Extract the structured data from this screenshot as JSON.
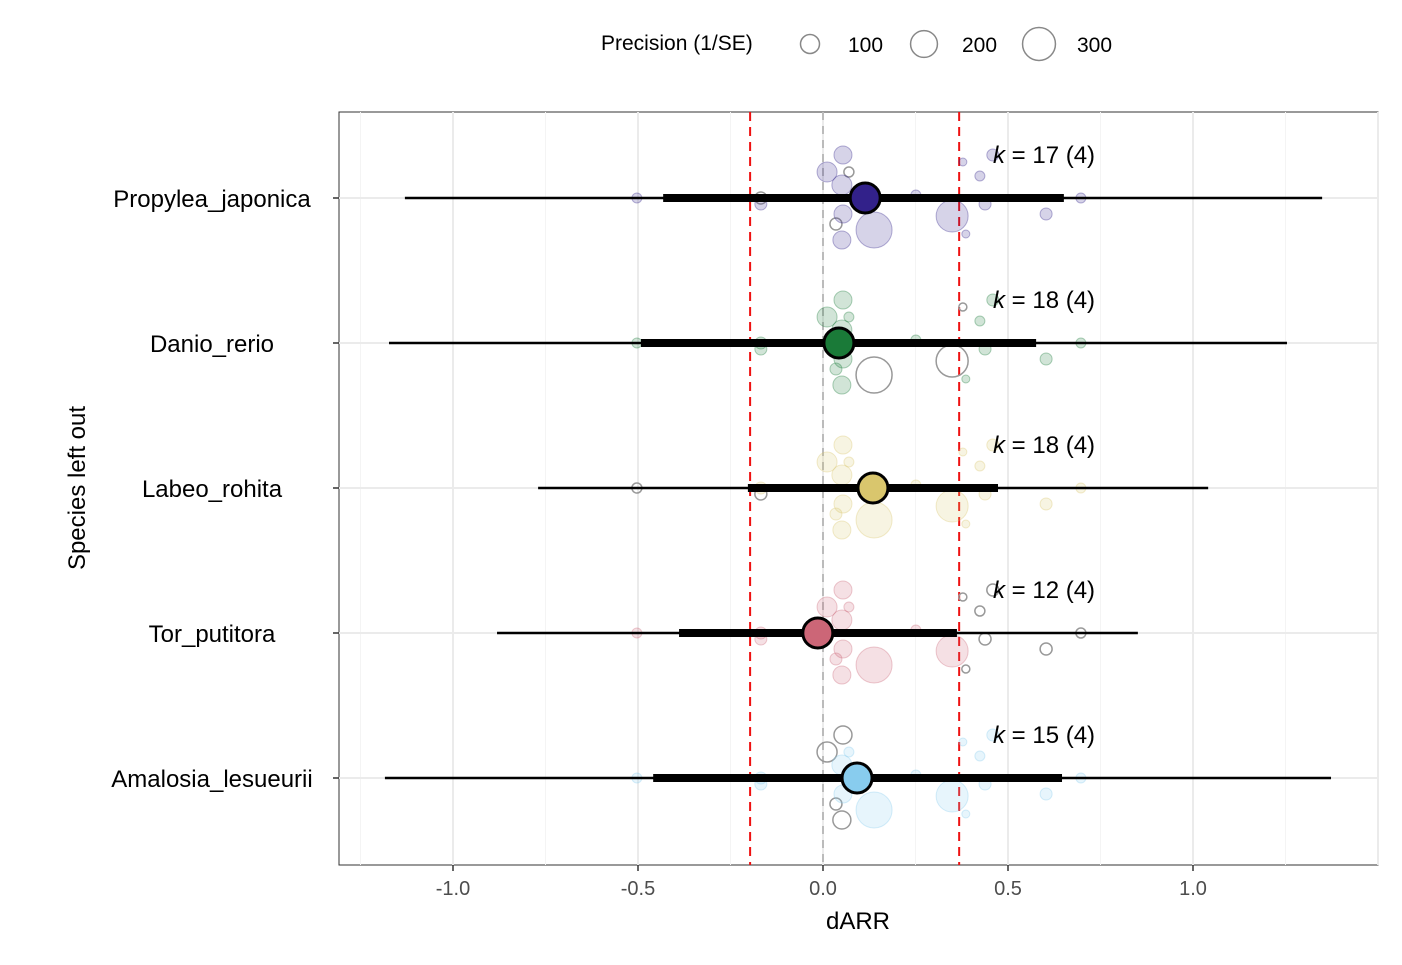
{
  "chart_data": {
    "type": "scatter",
    "subtype": "orchard plot (leave-one-species-out)",
    "xlabel": "dARR",
    "ylabel": "Species left out",
    "xlim": [
      -1.3,
      1.5
    ],
    "xticks": [
      -1.0,
      -0.5,
      0.0,
      0.5,
      1.0
    ],
    "xtick_labels": [
      "-1.0",
      "-0.5",
      "0.0",
      "0.5",
      "1.0"
    ],
    "grid": true,
    "reference_lines": {
      "zero": 0.0,
      "red_dashed": [
        -0.197,
        0.368
      ]
    },
    "legend": {
      "title": "Precision (1/SE)",
      "placement": "top",
      "sizes": [
        100,
        200,
        300
      ],
      "labels": [
        "100",
        "200",
        "300"
      ]
    },
    "points": [
      {
        "x": -0.503,
        "precision": 25
      },
      {
        "x": -0.168,
        "precision": 36
      },
      {
        "x": 0.054,
        "precision": 81
      },
      {
        "x": 0.011,
        "precision": 100
      },
      {
        "x": 0.07,
        "precision": 25
      },
      {
        "x": 0.051,
        "precision": 100
      },
      {
        "x": 0.035,
        "precision": 36
      },
      {
        "x": 0.051,
        "precision": 81
      },
      {
        "x": 0.054,
        "precision": 81
      },
      {
        "x": 0.138,
        "precision": 324
      },
      {
        "x": 0.251,
        "precision": 25
      },
      {
        "x": 0.349,
        "precision": 256
      },
      {
        "x": 0.378,
        "precision": 16
      },
      {
        "x": 0.386,
        "precision": 16
      },
      {
        "x": 0.424,
        "precision": 25
      },
      {
        "x": 0.459,
        "precision": 36
      },
      {
        "x": 0.438,
        "precision": 36
      },
      {
        "x": 0.603,
        "precision": 36
      },
      {
        "x": 0.697,
        "precision": 25
      },
      {
        "x": -0.168,
        "precision": 36
      }
    ],
    "series": [
      {
        "name": "Propylea_japonica",
        "color": "#32218a",
        "estimate": 0.114,
        "ci": [
          -0.432,
          0.651
        ],
        "pi": [
          -1.13,
          1.349
        ],
        "k": "17",
        "g": "4",
        "excluded": [
          1,
          4,
          6
        ]
      },
      {
        "name": "Danio_rerio",
        "color": "#1a7a38",
        "estimate": 0.043,
        "ci": [
          -0.492,
          0.576
        ],
        "pi": [
          -1.173,
          1.254
        ],
        "k": "18",
        "g": "4",
        "excluded": [
          9,
          11,
          12
        ]
      },
      {
        "name": "Labeo_rohita",
        "color": "#d9c66d",
        "estimate": 0.135,
        "ci": [
          -0.203,
          0.473
        ],
        "pi": [
          -0.77,
          1.041
        ],
        "k": "18",
        "g": "4",
        "excluded": [
          0,
          19
        ]
      },
      {
        "name": "Tor_putitora",
        "color": "#cc6677",
        "estimate": -0.014,
        "ci": [
          -0.389,
          0.362
        ],
        "pi": [
          -0.881,
          0.851
        ],
        "k": "12",
        "g": "4",
        "excluded": [
          12,
          13,
          14,
          15,
          16,
          17,
          18
        ]
      },
      {
        "name": "Amalosia_lesueurii",
        "color": "#88ccee",
        "estimate": 0.092,
        "ci": [
          -0.459,
          0.646
        ],
        "pi": [
          -1.184,
          1.373
        ],
        "k": "15",
        "g": "4",
        "excluded": [
          2,
          3,
          6,
          7
        ]
      }
    ]
  }
}
